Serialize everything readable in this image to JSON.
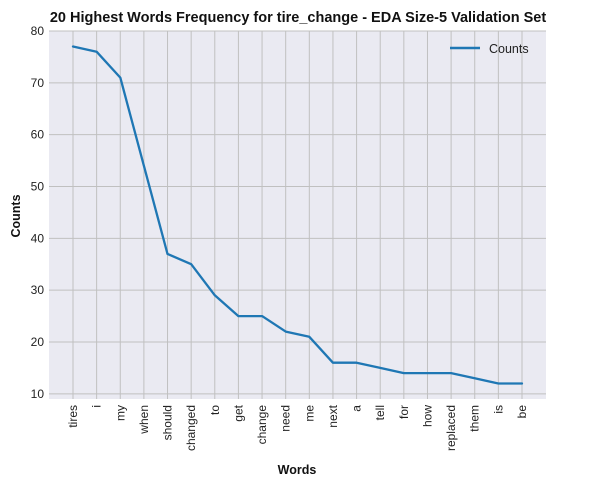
{
  "chart_data": {
    "type": "line",
    "title": "20 Highest Words Frequency for tire_change - EDA Size-5 Validation Set",
    "xlabel": "Words",
    "ylabel": "Counts",
    "categories": [
      "tires",
      "i",
      "my",
      "when",
      "should",
      "changed",
      "to",
      "get",
      "change",
      "need",
      "me",
      "next",
      "a",
      "tell",
      "for",
      "how",
      "replaced",
      "them",
      "is",
      "be"
    ],
    "series": [
      {
        "name": "Counts",
        "values": [
          77,
          76,
          71,
          54,
          37,
          35,
          29,
          25,
          25,
          22,
          21,
          16,
          16,
          15,
          14,
          14,
          14,
          13,
          12,
          12
        ]
      }
    ],
    "yticks": [
      10,
      20,
      30,
      40,
      50,
      60,
      70,
      80
    ],
    "ylim": [
      9,
      80
    ],
    "grid": true,
    "legend_position": "top-right",
    "colors": {
      "line": "#1f77b4",
      "plot_bg": "#eaeaf2",
      "grid": "#c0c0c0"
    }
  }
}
